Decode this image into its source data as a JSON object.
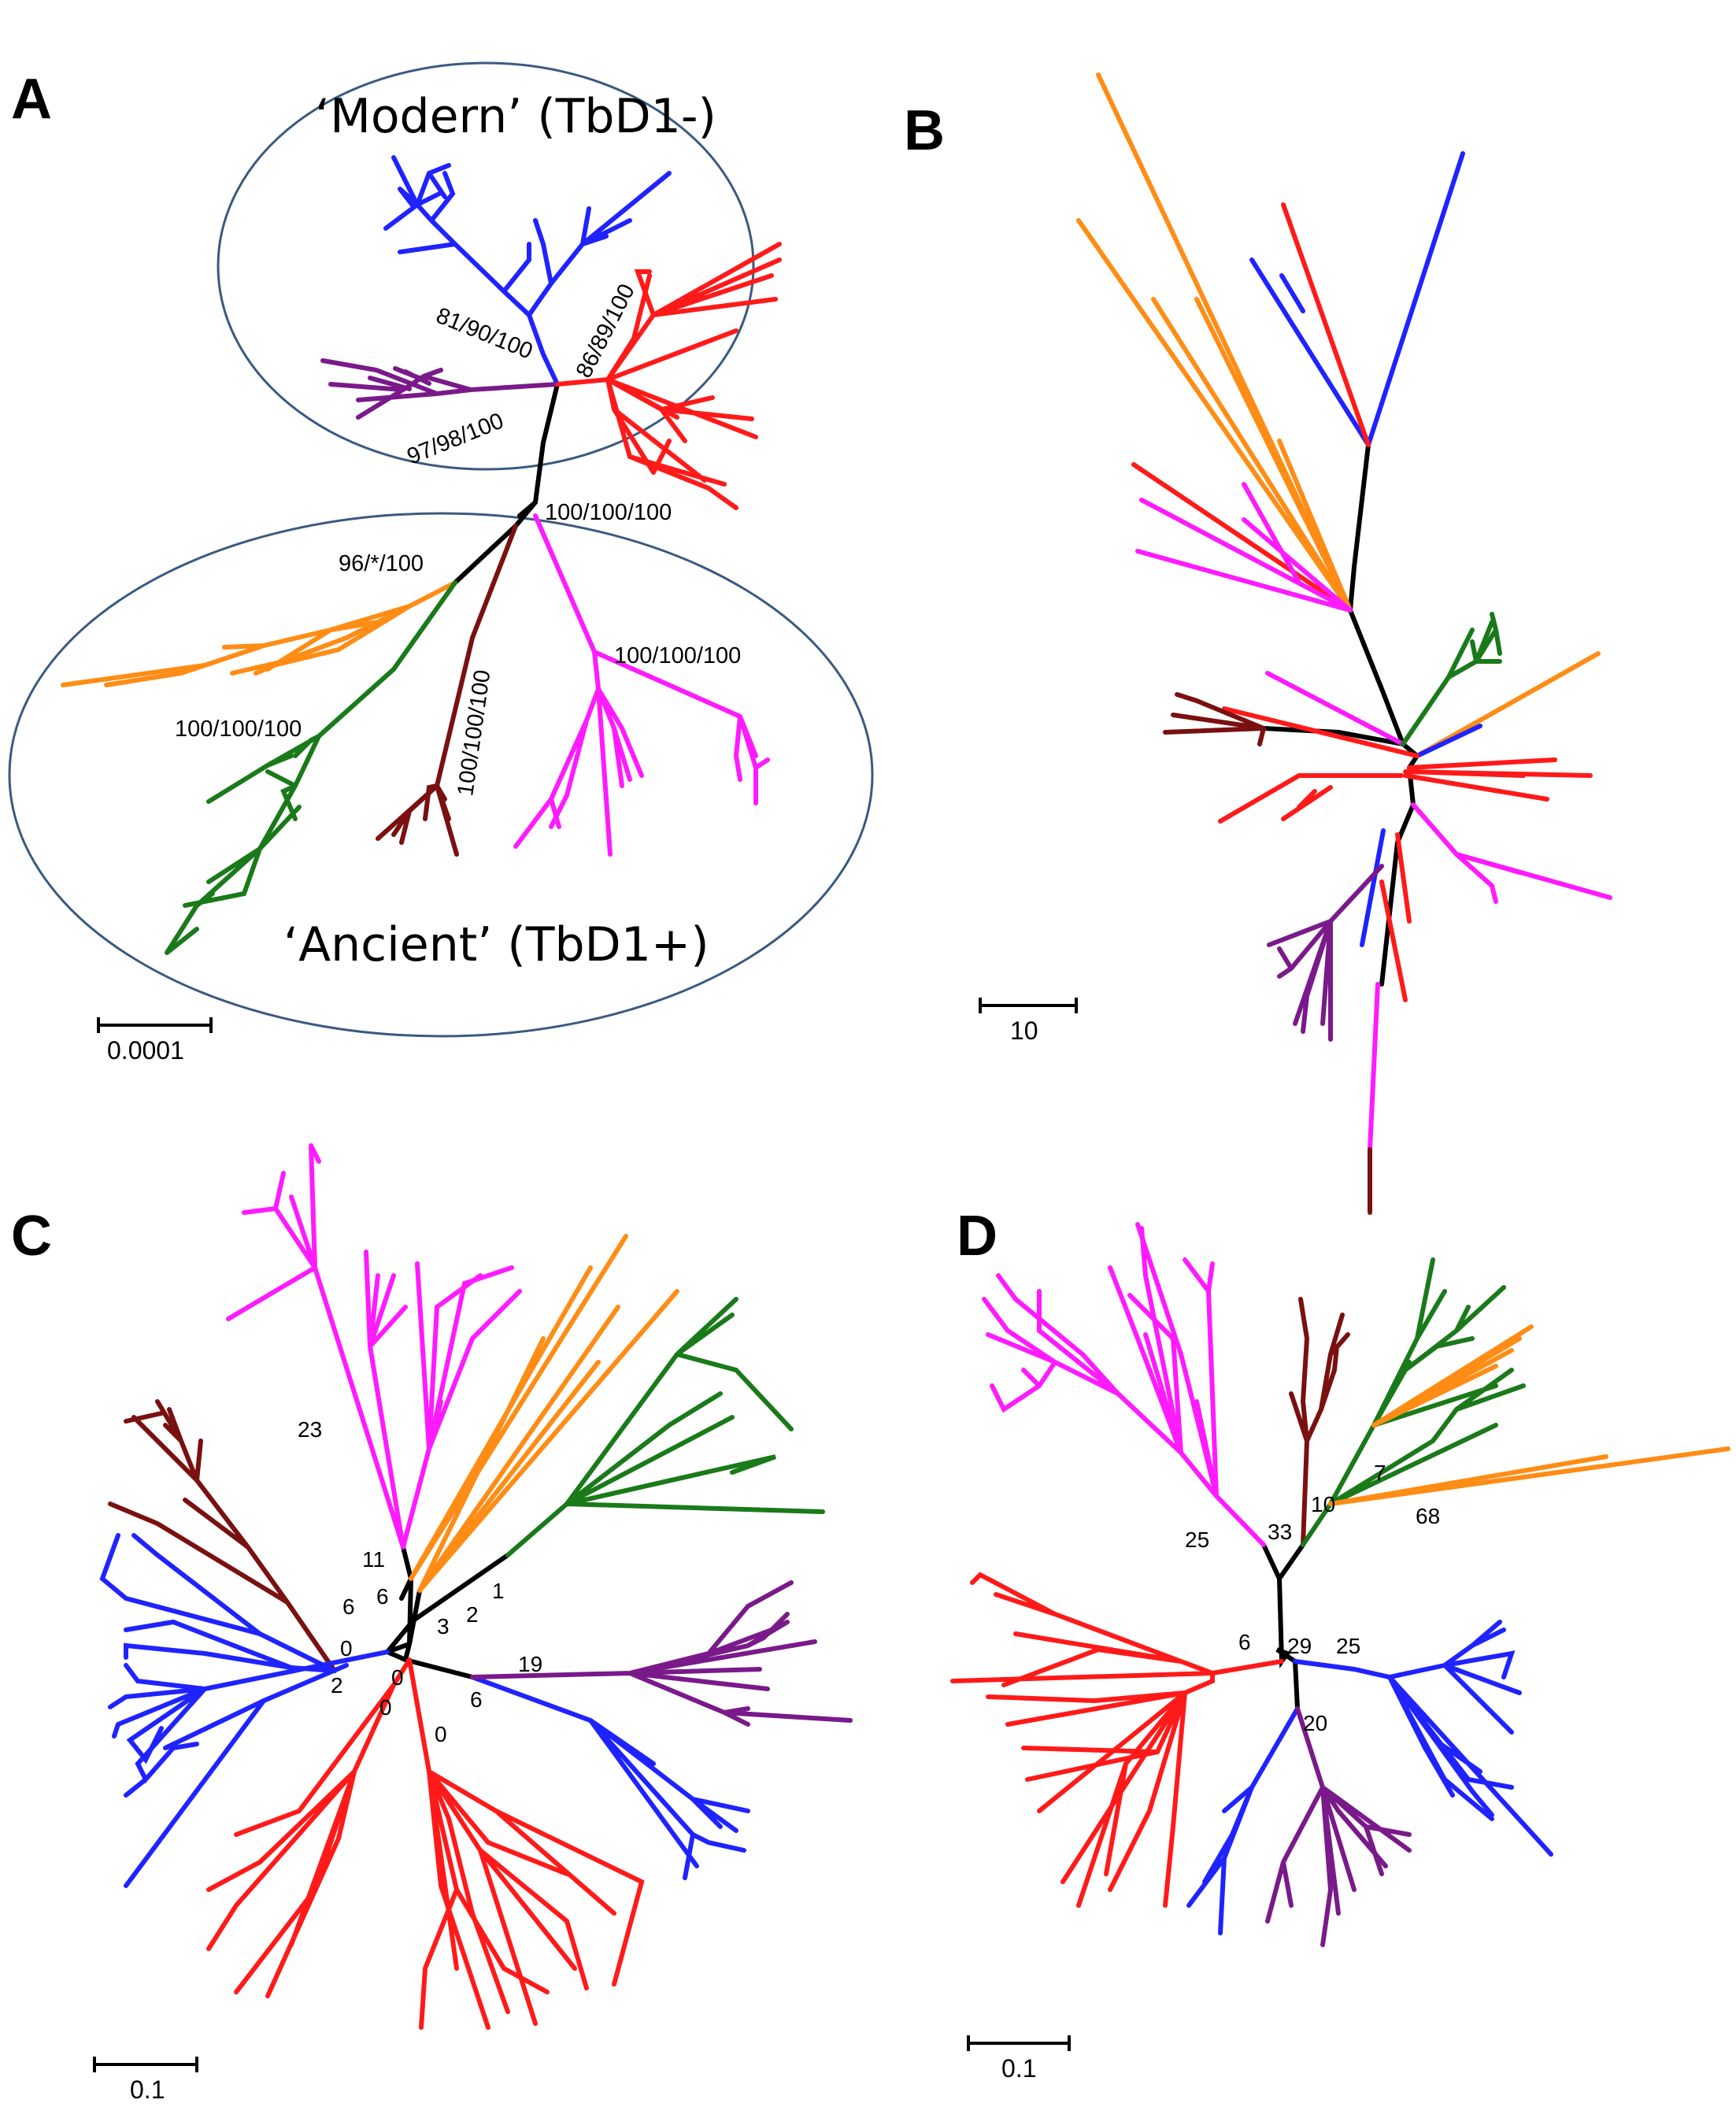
{
  "colors": {
    "blue": "#1f23ff",
    "red": "#ff1a1a",
    "purple": "#7a1a8a",
    "black": "#000000",
    "orange": "#ff8c14",
    "green": "#1a7a1a",
    "darkred": "#7a1010",
    "magenta": "#ff1aff",
    "ellipse": "#3a5a80"
  },
  "panels": {
    "A": {
      "letter": "A",
      "group_top": "‘Modern’ (TbD1-)",
      "group_bottom": "‘Ancient’ (TbD1+)",
      "support_values": [
        "81/90/100",
        "86/89/100",
        "97/98/100",
        "100/100/100",
        "96/*/100",
        "100/100/100",
        "100/100/100",
        "100/100/100"
      ],
      "scale_label": "0.0001"
    },
    "B": {
      "letter": "B",
      "scale_label": "10"
    },
    "C": {
      "letter": "C",
      "node_labels": [
        "23",
        "11",
        "6",
        "6",
        "3",
        "2",
        "1",
        "0",
        "2",
        "0",
        "0",
        "0",
        "19",
        "6"
      ],
      "scale_label": "0.1"
    },
    "D": {
      "letter": "D",
      "node_labels": [
        "25",
        "33",
        "10",
        "7",
        "68",
        "6",
        "29",
        "25",
        "20"
      ],
      "scale_label": "0.1"
    }
  }
}
